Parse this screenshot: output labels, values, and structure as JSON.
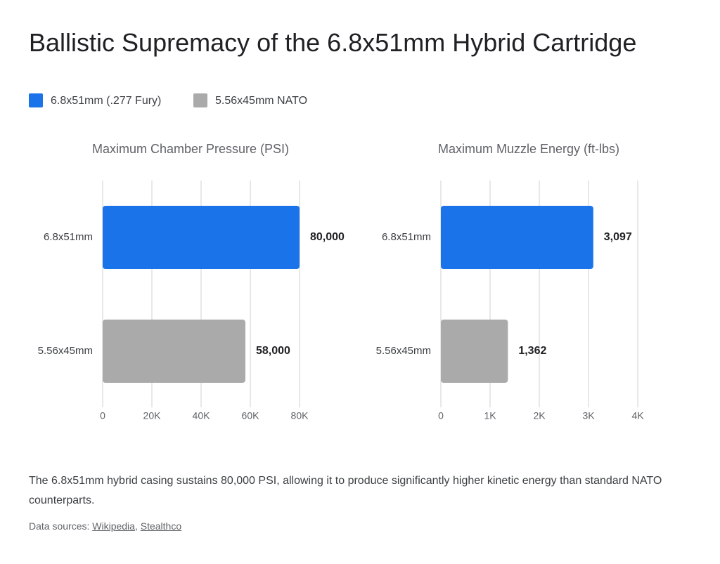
{
  "title": "Ballistic Supremacy of the 6.8x51mm Hybrid Cartridge",
  "legend": {
    "names": [
      "6.8x51mm (.277 Fury)",
      "5.56x45mm NATO"
    ],
    "colors": [
      "#1a73e8",
      "#aaaaaa"
    ]
  },
  "chart_data": [
    {
      "type": "hbar",
      "title": "Maximum Chamber Pressure (PSI)",
      "categories": [
        "6.8x51mm",
        "5.56x45mm"
      ],
      "values": [
        80000,
        58000
      ],
      "value_labels": [
        "80,000",
        "58,000"
      ],
      "xlim": [
        0,
        80000
      ],
      "xticks": [
        0,
        {
          "value": 20000,
          "label": "20K"
        },
        {
          "value": 40000,
          "label": "40K"
        },
        {
          "value": 60000,
          "label": "60K"
        },
        {
          "value": 80000,
          "label": "80K"
        }
      ],
      "grid": true
    },
    {
      "type": "hbar",
      "title": "Maximum Muzzle Energy (ft-lbs)",
      "categories": [
        "6.8x51mm",
        "5.56x45mm"
      ],
      "values": [
        3097,
        1362
      ],
      "value_labels": [
        "3,097",
        "1,362"
      ],
      "xlim": [
        0,
        4000
      ],
      "xticks": [
        0,
        {
          "value": 1000,
          "label": "1K"
        },
        {
          "value": 2000,
          "label": "2K"
        },
        {
          "value": 3000,
          "label": "3K"
        },
        {
          "value": 4000,
          "label": "4K"
        }
      ],
      "grid": true
    }
  ],
  "description": "The 6.8x51mm hybrid casing sustains 80,000 PSI, allowing it to produce significantly higher kinetic energy than standard NATO counterparts.",
  "sources": {
    "prefix": "Data sources:",
    "links": [
      "Wikipedia",
      "Stealthco"
    ],
    "separator": ","
  }
}
